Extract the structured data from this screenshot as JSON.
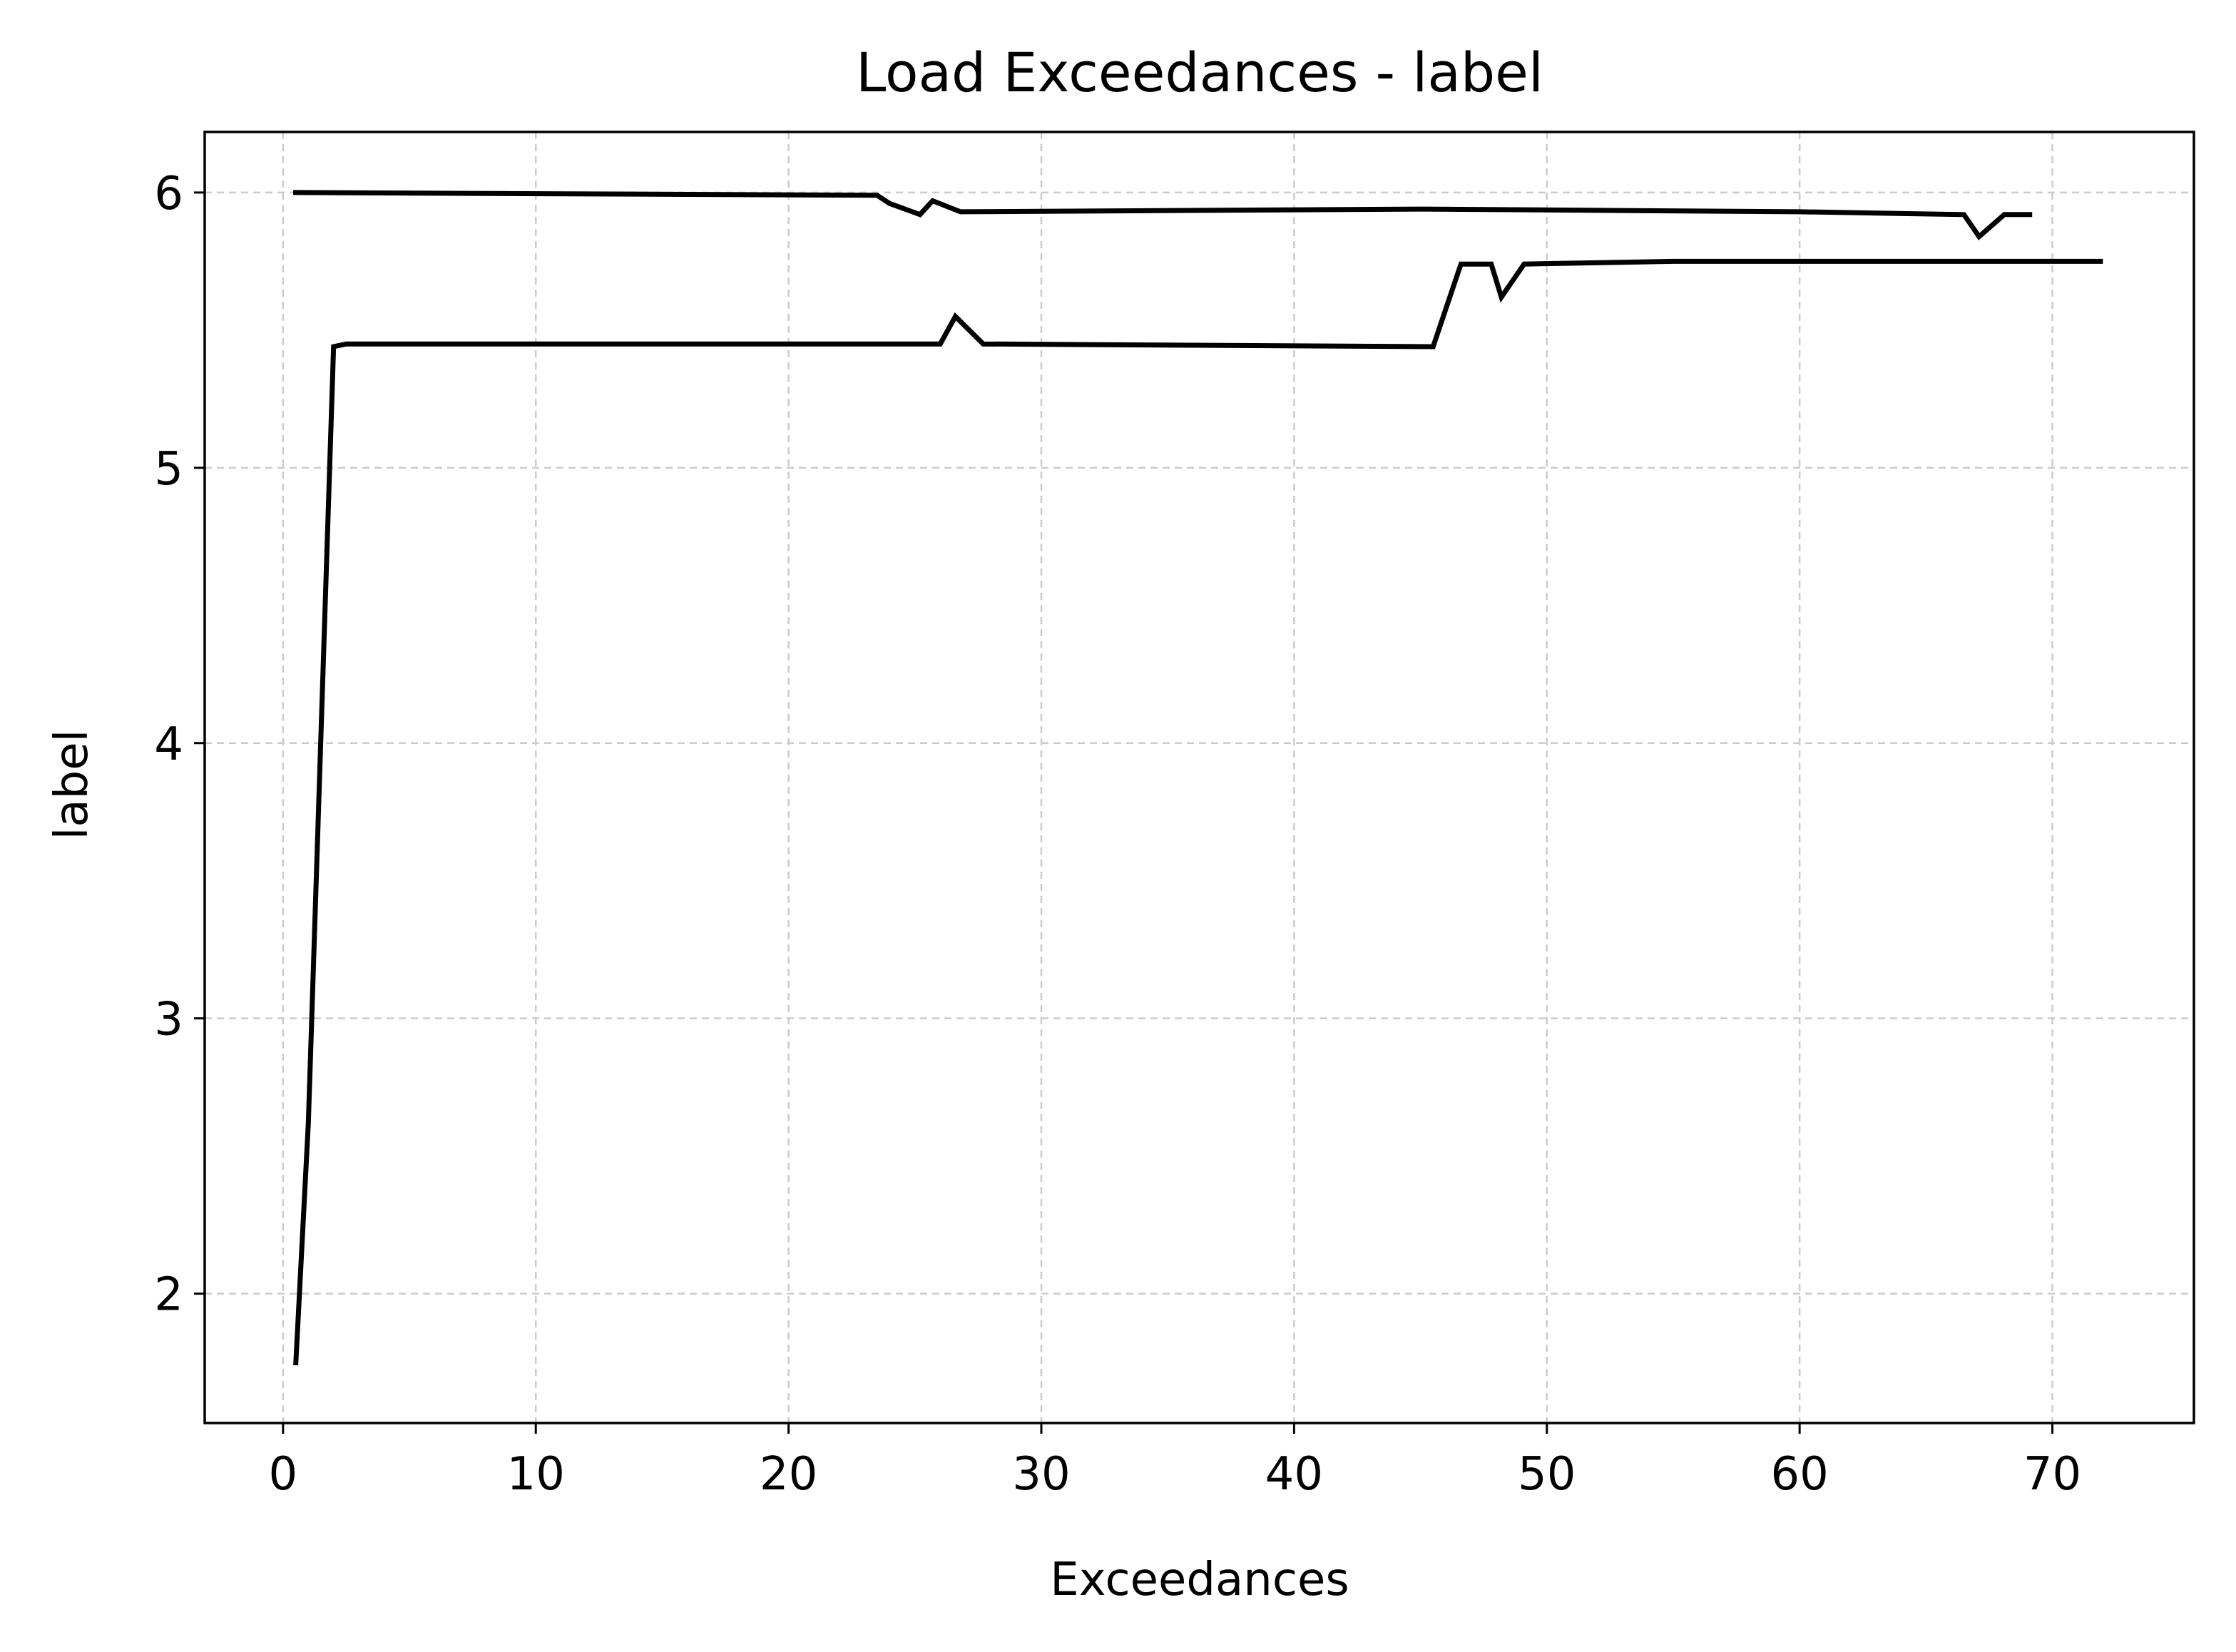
{
  "chart_data": {
    "type": "line",
    "title": "Load Exceedances - label",
    "xlabel": "Exceedances",
    "ylabel": "label",
    "xlim": [
      -3.1,
      75.6
    ],
    "ylim": [
      1.53,
      6.22
    ],
    "xticks": [
      0,
      10,
      20,
      30,
      40,
      50,
      60,
      70
    ],
    "yticks": [
      2,
      3,
      4,
      5,
      6
    ],
    "grid": true,
    "line_color": "#000000",
    "series": [
      {
        "x": [
          0.4,
          23.5,
          24.0,
          25.2,
          25.7,
          26.8,
          45.0,
          60.0,
          66.5,
          67.1,
          68.1,
          69.2
        ],
        "values": [
          6.0,
          5.99,
          5.96,
          5.92,
          5.97,
          5.93,
          5.94,
          5.93,
          5.92,
          5.84,
          5.92,
          5.92
        ]
      },
      {
        "x": [
          0.5,
          1.0,
          2.0,
          2.5,
          26.0,
          26.6,
          27.7,
          45.5,
          46.6,
          47.8,
          48.2,
          49.1,
          55.0,
          72.0
        ],
        "values": [
          1.74,
          2.62,
          5.44,
          5.45,
          5.45,
          5.55,
          5.45,
          5.44,
          5.74,
          5.74,
          5.62,
          5.74,
          5.75,
          5.75
        ]
      }
    ]
  }
}
